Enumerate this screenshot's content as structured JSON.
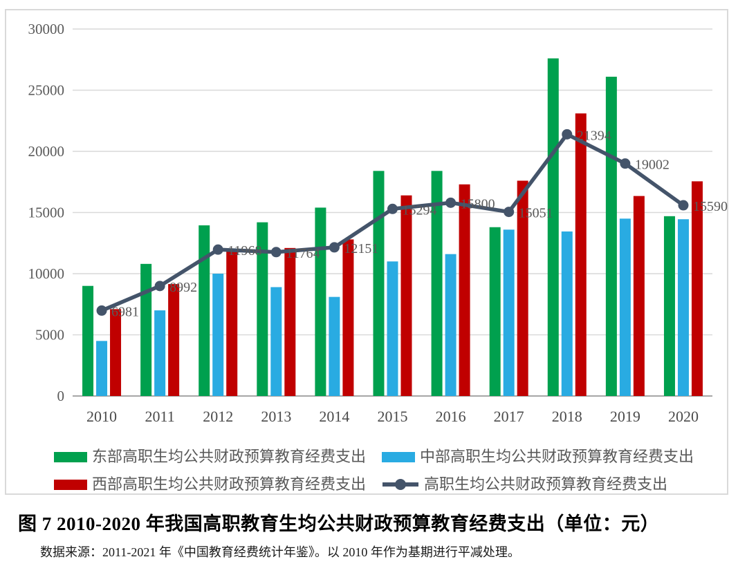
{
  "figure": {
    "caption": "图 7  2010-2020 年我国高职教育生均公共财政预算教育经费支出（单位：元）",
    "source": "数据来源：2011-2021 年《中国教育经费统计年鉴》。以 2010 年作为基期进行平减处理。"
  },
  "chart_data": {
    "type": "bar",
    "subtype": "grouped-bars-with-line-overlay",
    "unit": "元",
    "categories": [
      "2010",
      "2011",
      "2012",
      "2013",
      "2014",
      "2015",
      "2016",
      "2017",
      "2018",
      "2019",
      "2020"
    ],
    "series": [
      {
        "name": "东部高职生均公共财政预算教育经费支出",
        "type": "bar",
        "color": "#00A04E",
        "values": [
          9000,
          10800,
          13950,
          14200,
          15400,
          18400,
          18400,
          13800,
          27600,
          26100,
          14700
        ]
      },
      {
        "name": "中部高职生均公共财政预算教育经费支出",
        "type": "bar",
        "color": "#29ABE2",
        "values": [
          4500,
          7000,
          10000,
          8900,
          8100,
          11000,
          11600,
          13600,
          13450,
          14500,
          14450
        ]
      },
      {
        "name": "西部高职生均公共财政预算教育经费支出",
        "type": "bar",
        "color": "#C00000",
        "values": [
          7100,
          9150,
          11950,
          12100,
          12800,
          16400,
          17300,
          17600,
          23100,
          16350,
          17550
        ]
      },
      {
        "name": "高职生均公共财政预算教育经费支出",
        "type": "line",
        "color": "#44546A",
        "values": [
          6981,
          8992,
          11968,
          11764,
          12151,
          15294,
          15800,
          15051,
          21394,
          19002,
          15590
        ],
        "data_labels": [
          "6981",
          "8992",
          "11968",
          "11764",
          "12151",
          "15294",
          "15800",
          "15051",
          "21394",
          "19002",
          "15590"
        ]
      }
    ],
    "ylim": [
      0,
      30000
    ],
    "y_ticks": [
      0,
      5000,
      10000,
      15000,
      20000,
      25000,
      30000
    ],
    "grid": true,
    "legend_position": "bottom",
    "grid_color": "#D9D9D9",
    "baseline_color": "#A6A6A6"
  }
}
